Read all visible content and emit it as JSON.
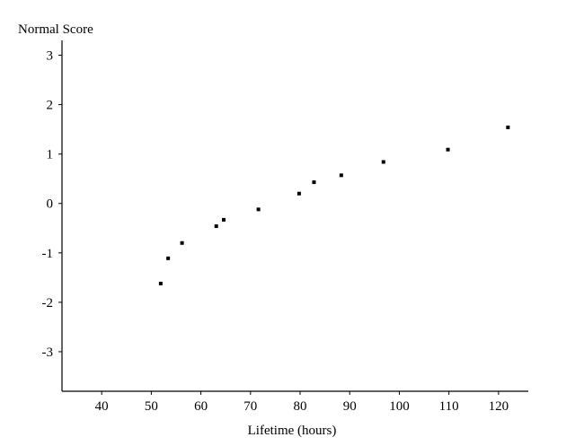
{
  "chart_data": {
    "type": "scatter",
    "title": "",
    "xlabel": "Lifetime (hours)",
    "ylabel": "Normal Score",
    "xlim": [
      32,
      126
    ],
    "ylim": [
      -3.8,
      3.3
    ],
    "xticks": [
      40,
      50,
      60,
      70,
      80,
      90,
      100,
      110,
      120
    ],
    "xtick_labels": [
      "40",
      "50",
      "60",
      "70",
      "80",
      "90",
      "100",
      "110",
      "120"
    ],
    "yticks": [
      3,
      2,
      1,
      0,
      -1,
      -2,
      -3
    ],
    "ytick_labels": [
      "3",
      "2",
      "1",
      "0",
      "-1",
      "-2",
      "-3"
    ],
    "grid": false,
    "series": [
      {
        "points": [
          {
            "x": 51.9,
            "y": -1.62
          },
          {
            "x": 53.4,
            "y": -1.11
          },
          {
            "x": 56.2,
            "y": -0.8
          },
          {
            "x": 63.1,
            "y": -0.46
          },
          {
            "x": 64.6,
            "y": -0.33
          },
          {
            "x": 71.6,
            "y": -0.12
          },
          {
            "x": 79.8,
            "y": 0.2
          },
          {
            "x": 82.8,
            "y": 0.43
          },
          {
            "x": 88.3,
            "y": 0.57
          },
          {
            "x": 96.8,
            "y": 0.84
          },
          {
            "x": 109.8,
            "y": 1.09
          },
          {
            "x": 121.9,
            "y": 1.54
          }
        ],
        "color": "#000000"
      }
    ]
  }
}
